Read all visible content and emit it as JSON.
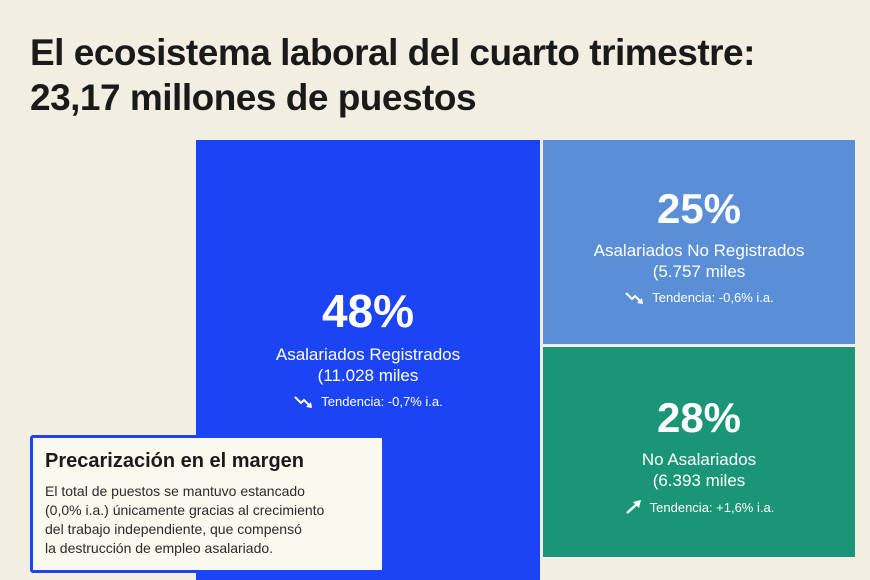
{
  "title_line1": "El ecosistema laboral del cuarto trimestre:",
  "title_line2": "23,17 millones de puestos",
  "chart_data": {
    "type": "treemap",
    "title": "El ecosistema laboral del cuarto trimestre: 23,17 millones de puestos",
    "segments": [
      {
        "percent_label": "48%",
        "value": 48,
        "name": "Asalariados Registrados",
        "detail": "(11.028 miles",
        "thousands": 11028,
        "trend": "Tendencia: -0,7% i.a.",
        "trend_direction": "down",
        "color": "#1b44f5"
      },
      {
        "percent_label": "25%",
        "value": 25,
        "name": "Asalariados No Registrados",
        "detail": "(5.757 miles",
        "thousands": 5757,
        "trend": "Tendencia: -0,6% i.a.",
        "trend_direction": "down",
        "color": "#5a8fd8"
      },
      {
        "percent_label": "28%",
        "value": 28,
        "name": "No Asalariados",
        "detail": "(6.393 miles",
        "thousands": 6393,
        "trend": "Tendencia: +1,6% i.a.",
        "trend_direction": "up",
        "color": "#1a9577"
      }
    ]
  },
  "callout": {
    "heading": "Precarización en el margen",
    "line1": "El total de puestos se mantuvo estancado",
    "line2": "(0,0% i.a.) únicamente gracias al crecimiento",
    "line3": "del trabajo independiente, que compensó",
    "line4": "la destrucción de empleo asalariado."
  }
}
